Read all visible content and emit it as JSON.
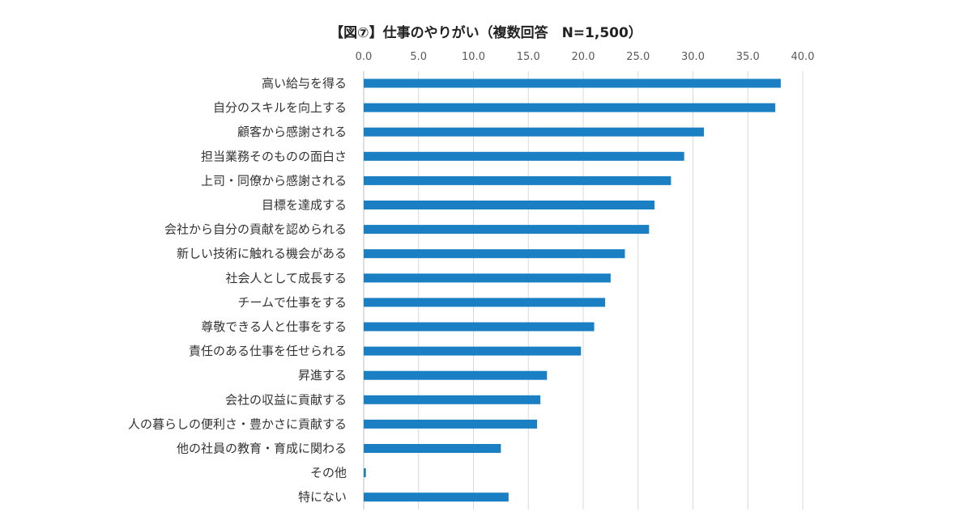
{
  "chart_data": {
    "type": "bar",
    "orientation": "horizontal",
    "title": "【図⑦】仕事のやりがい（複数回答　N=1,500）",
    "xlim": [
      0,
      40
    ],
    "x_ticks": [
      "0.0",
      "5.0",
      "10.0",
      "15.0",
      "20.0",
      "25.0",
      "30.0",
      "35.0",
      "40.0"
    ],
    "x_axis_position": "top",
    "grid": true,
    "bar_color": "#1b7fc4",
    "categories": [
      "高い給与を得る",
      "自分のスキルを向上する",
      "顧客から感謝される",
      "担当業務そのものの面白さ",
      "上司・同僚から感謝される",
      "目標を達成する",
      "会社から自分の貢献を認められる",
      "新しい技術に触れる機会がある",
      "社会人として成長する",
      "チームで仕事をする",
      "尊敬できる人と仕事をする",
      "責任のある仕事を任せられる",
      "昇進する",
      "会社の収益に貢献する",
      "人の暮らしの便利さ・豊かさに貢献する",
      "他の社員の教育・育成に関わる",
      "その他",
      "特にない"
    ],
    "values": [
      38.0,
      37.5,
      31.0,
      29.2,
      28.0,
      26.5,
      26.0,
      23.8,
      22.5,
      22.0,
      21.0,
      19.8,
      16.7,
      16.1,
      15.8,
      12.5,
      0.2,
      13.2
    ]
  }
}
